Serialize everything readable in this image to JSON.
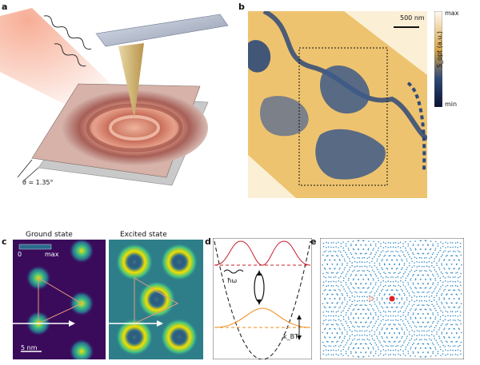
{
  "panels": {
    "a": {
      "letter": "a",
      "twist_label": "θ = 1.35°"
    },
    "b": {
      "letter": "b",
      "scalebar": "500 nm",
      "colorbar_max": "max",
      "colorbar_min": "min",
      "colorbar_label": "S_opt (a.u.)"
    },
    "c": {
      "letter": "c",
      "left_title": "Ground state",
      "right_title": "Excited state",
      "cbar_min": "0",
      "cbar_max": "max",
      "scalebar": "5 nm"
    },
    "d": {
      "letter": "d",
      "hw_label": "ħω",
      "kbt_label": "k_BT"
    },
    "e": {
      "letter": "e"
    }
  },
  "colors": {
    "sample_blue": "#2f4a78",
    "sample_gold": "#e6b44e",
    "map_dark": "#3a0b5b",
    "map_bright": "#f2e000",
    "curve_red": "#c81e2a",
    "curve_orange": "#f08a18",
    "lattice_blue": "#3a8fc6"
  }
}
